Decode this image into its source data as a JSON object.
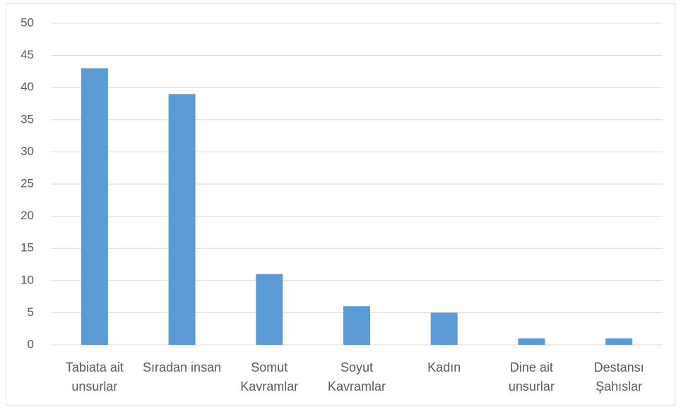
{
  "chart_data": {
    "type": "bar",
    "categories": [
      "Tabiata ait unsurlar",
      "Sıradan insan",
      "Somut Kavramlar",
      "Soyut Kavramlar",
      "Kadın",
      "Dine ait unsurlar",
      "Destansı Şahıslar"
    ],
    "values": [
      43,
      39,
      11,
      6,
      5,
      1,
      1
    ],
    "color": "#5b9bd5",
    "ylim": [
      0,
      50
    ],
    "yticks": [
      0,
      5,
      10,
      15,
      20,
      25,
      30,
      35,
      40,
      45,
      50
    ],
    "grid": true
  }
}
